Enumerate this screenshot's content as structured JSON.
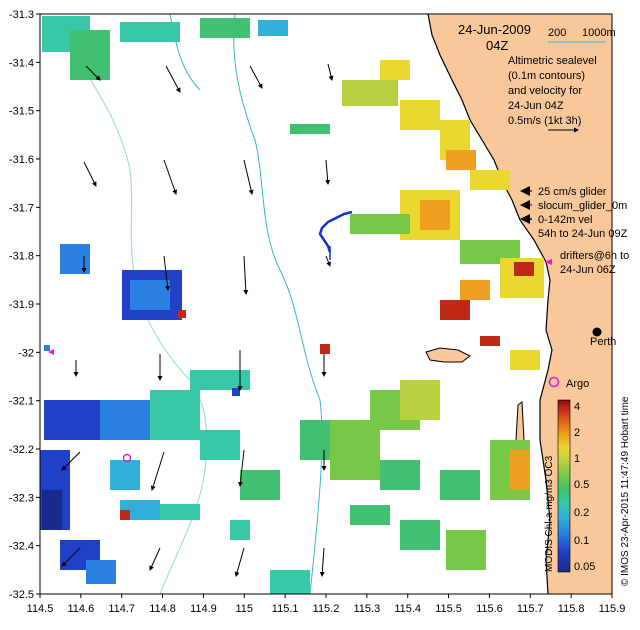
{
  "title": {
    "date": "24-Jun-2009",
    "hour": "04Z"
  },
  "depth_legend": {
    "c200": "200",
    "c1000": "1000m",
    "c200_color": "#88e0c8",
    "c1000_color": "#38b8c8"
  },
  "altimetry_lines": [
    "Altimetric sealevel",
    "(0.1m contours)",
    "and velocity for",
    "24-Jun 04Z",
    "0.5m/s (1kt 3h)"
  ],
  "glider_legend": [
    "25 cm/s glider",
    "slocum_glider_0m",
    "0-142m vel",
    "54h to 24-Jun 09Z"
  ],
  "drifters_legend": [
    "drifters@6h to",
    "24-Jun 06Z"
  ],
  "place_labels": {
    "perth": "Perth",
    "argo": "Argo"
  },
  "colorbar": {
    "ticks": [
      "4",
      "2",
      "1",
      "0.5",
      "0.2",
      "0.1",
      "0.05"
    ],
    "label": "MODIS Chl-a mg/m3 OC3",
    "colors": [
      "#1a2a8c",
      "#2040c8",
      "#2a7fe0",
      "#30b0d8",
      "#38c8a8",
      "#40c070",
      "#78c848",
      "#b8d040",
      "#e8d830",
      "#f0a020",
      "#e06018",
      "#c02818",
      "#801010"
    ]
  },
  "credit": "© IMOS 23-Apr-2015 11:47:49 Hobart time",
  "axes": {
    "lon_ticks": [
      "114.5",
      "114.6",
      "114.7",
      "114.8",
      "114.9",
      "115",
      "115.1",
      "115.2",
      "115.3",
      "115.4",
      "115.5",
      "115.6",
      "115.7",
      "115.8",
      "115.9"
    ],
    "lat_ticks": [
      "-31.3",
      "-31.4",
      "-31.5",
      "-31.6",
      "-31.7",
      "-31.8",
      "-31.9",
      "-32",
      "-32.1",
      "-32.2",
      "-32.3",
      "-32.4",
      "-32.5"
    ],
    "lon_range": [
      114.5,
      115.9
    ],
    "lat_range": [
      -32.5,
      -31.3
    ]
  },
  "colors": {
    "land": "#f8c89a",
    "coast": "#000000",
    "glider": "#1030d0",
    "drifter": "#ff10c0",
    "argo": "#e020d0",
    "vel_arrow": "#000000"
  }
}
